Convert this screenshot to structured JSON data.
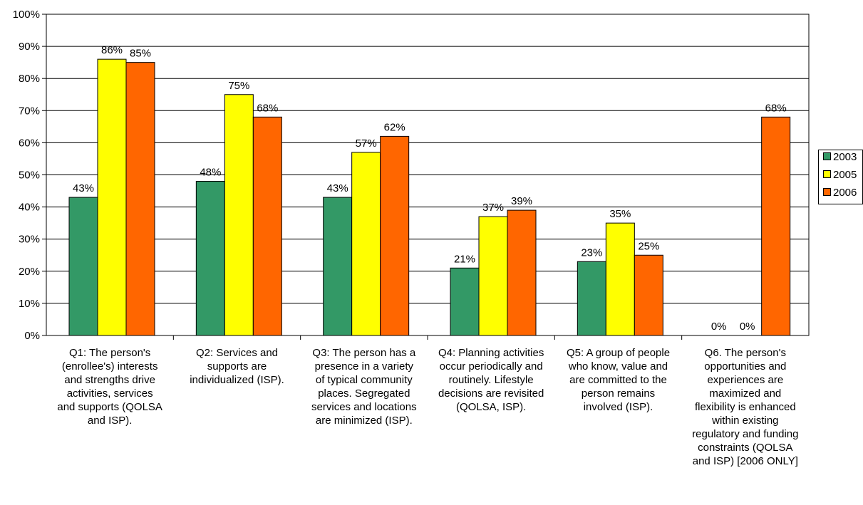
{
  "chart_data": {
    "type": "bar",
    "categories": [
      "Q1: The person's (enrollee's) interests and strengths drive activities, services and supports (QOLSA and ISP).",
      "Q2: Services and supports are individualized (ISP).",
      "Q3: The person has a presence in a variety of typical community places. Segregated services and locations are minimized (ISP).",
      "Q4: Planning activities occur periodically and routinely.  Lifestyle decisions are revisited (QOLSA, ISP).",
      "Q5: A group of people who know, value and are committed to the person remains involved (ISP).",
      "Q6. The person's opportunities and experiences are maximized and flexibility is enhanced within existing regulatory and funding constraints (QOLSA and ISP) [2006 ONLY]"
    ],
    "series": [
      {
        "name": "2003",
        "color": "#339966",
        "values": [
          43,
          48,
          43,
          21,
          23,
          0
        ],
        "labels": [
          "43%",
          "48%",
          "43%",
          "21%",
          "23%",
          "0%"
        ]
      },
      {
        "name": "2005",
        "color": "#ffff00",
        "values": [
          86,
          75,
          57,
          37,
          35,
          0
        ],
        "labels": [
          "86%",
          "75%",
          "57%",
          "37%",
          "35%",
          "0%"
        ]
      },
      {
        "name": "2006",
        "color": "#ff6600",
        "values": [
          85,
          68,
          62,
          39,
          25,
          68
        ],
        "labels": [
          "85%",
          "68%",
          "62%",
          "39%",
          "25%",
          "68%"
        ]
      }
    ],
    "y_ticks": [
      "0%",
      "10%",
      "20%",
      "30%",
      "40%",
      "50%",
      "60%",
      "70%",
      "80%",
      "90%",
      "100%"
    ],
    "ylim": [
      0,
      100
    ],
    "grid": true,
    "legend_position": "right",
    "title": "",
    "xlabel": "",
    "ylabel": ""
  }
}
